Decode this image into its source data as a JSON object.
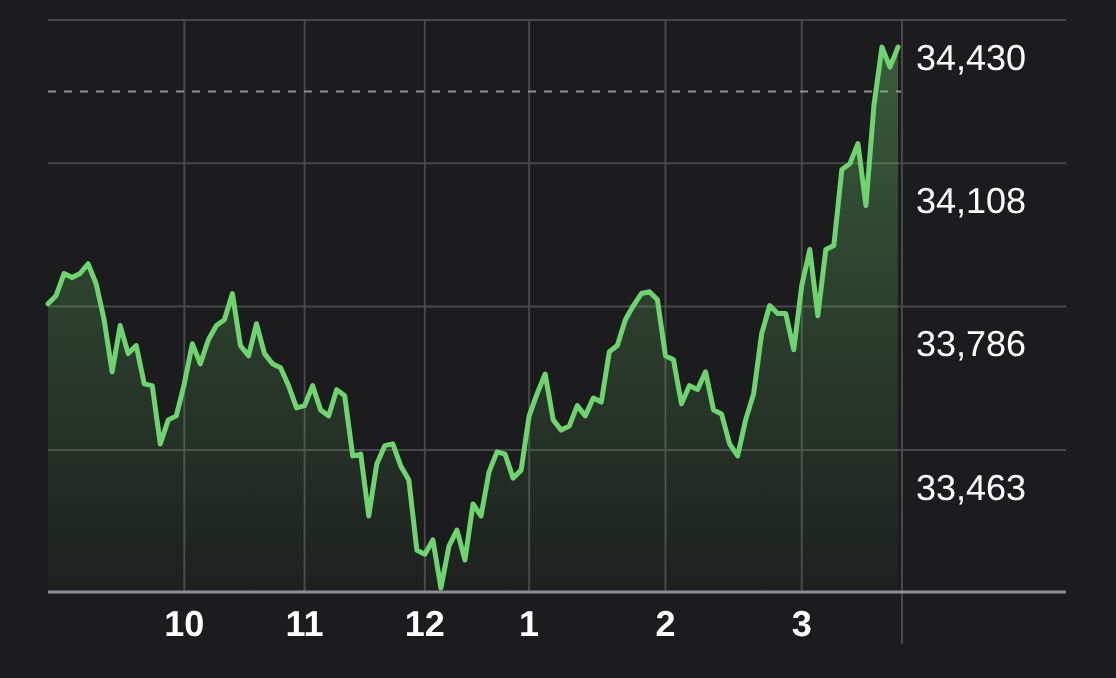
{
  "chart_data": {
    "type": "area",
    "color": "#6fd36f",
    "categories": [
      null,
      null,
      null,
      null,
      null,
      null,
      null,
      null,
      null,
      null,
      null,
      null,
      null,
      null,
      null,
      null,
      null,
      "10",
      null,
      null,
      null,
      null,
      null,
      null,
      null,
      null,
      null,
      null,
      null,
      null,
      null,
      null,
      "11",
      null,
      null,
      null,
      null,
      null,
      null,
      null,
      null,
      null,
      null,
      null,
      null,
      null,
      null,
      "12",
      null,
      null,
      null,
      null,
      null,
      null,
      null,
      null,
      null,
      null,
      null,
      null,
      "1",
      null,
      null,
      null,
      null,
      null,
      null,
      null,
      null,
      null,
      null,
      null,
      null,
      null,
      null,
      null,
      null,
      "2",
      null,
      null,
      null,
      null,
      null,
      null,
      null,
      null,
      null,
      null,
      null,
      null,
      null,
      null,
      null,
      null,
      "3",
      null,
      null,
      null,
      null,
      null,
      null,
      null,
      null,
      null,
      null,
      null,
      null
    ],
    "values": [
      33792,
      33810,
      33860,
      33851,
      33860,
      33882,
      33837,
      33756,
      33639,
      33743,
      33680,
      33698,
      33612,
      33608,
      33477,
      33531,
      33540,
      33612,
      33702,
      33657,
      33711,
      33743,
      33756,
      33815,
      33698,
      33675,
      33747,
      33680,
      33657,
      33648,
      33608,
      33558,
      33563,
      33608,
      33553,
      33540,
      33599,
      33585,
      33450,
      33454,
      33315,
      33432,
      33473,
      33477,
      33427,
      33396,
      33238,
      33229,
      33261,
      33153,
      33247,
      33283,
      33216,
      33342,
      33315,
      33414,
      33459,
      33454,
      33400,
      33418,
      33540,
      33590,
      33634,
      33531,
      33508,
      33517,
      33563,
      33540,
      33580,
      33571,
      33684,
      33698,
      33756,
      33788,
      33815,
      33819,
      33801,
      33675,
      33666,
      33567,
      33608,
      33599,
      33639,
      33553,
      33544,
      33477,
      33450,
      33531,
      33590,
      33725,
      33788,
      33770,
      33770,
      33689,
      33833,
      33914,
      33765,
      33914,
      33923,
      34094,
      34107,
      34152,
      34013,
      34238,
      34369,
      34324,
      34369
    ],
    "ylim": [
      33144,
      34430
    ],
    "yticks": [
      {
        "value": 33463,
        "label": "33,463"
      },
      {
        "value": 33786,
        "label": "33,786"
      },
      {
        "value": 34108,
        "label": "34,108"
      },
      {
        "value": 34430,
        "label": "34,430"
      }
    ],
    "grid": true,
    "ref_lines": [
      {
        "axis": "y",
        "value": 34269,
        "label": null,
        "color": "#8e8e93",
        "line_style": "dashed"
      }
    ]
  }
}
